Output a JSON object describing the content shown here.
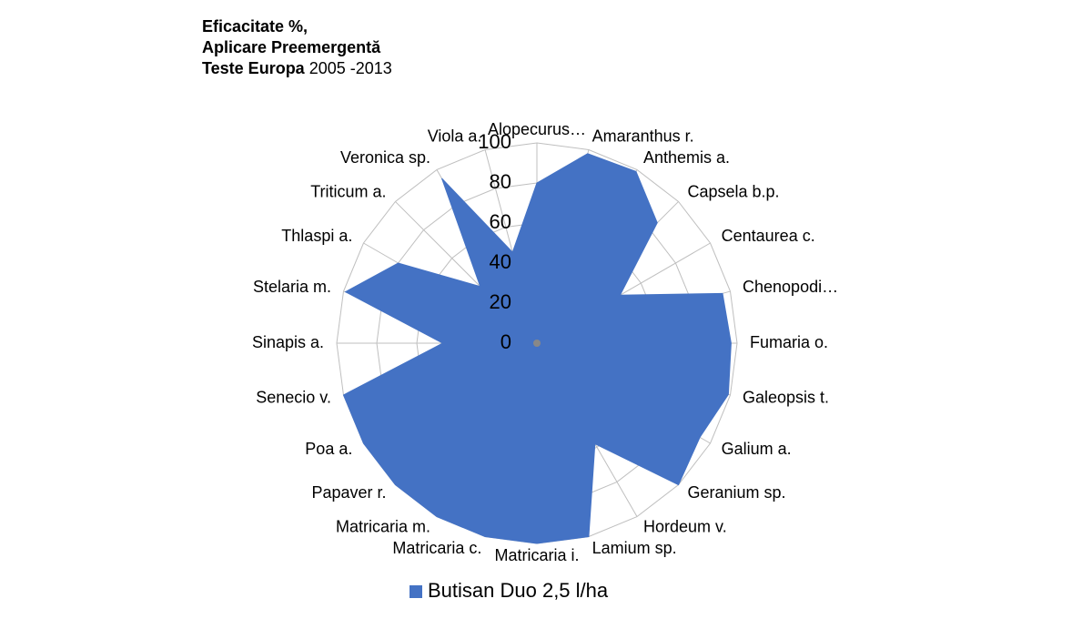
{
  "chart_data": {
    "type": "radar",
    "title": [
      "Eficacitate %,",
      "Aplicare Preemergentă",
      "Teste Europa"
    ],
    "subtitle": "2005 -2013",
    "categories": [
      "Alopecurus…",
      "Amaranthus r.",
      "Anthemis a.",
      "Capsela b.p.",
      "Centaurea c.",
      "Chenopodi…",
      "Fumaria o.",
      "Galeopsis t.",
      "Galium a.",
      "Geranium sp.",
      "Hordeum v.",
      "Lamium sp.",
      "Matricaria i.",
      "Matricaria c.",
      "Matricaria m.",
      "Papaver r.",
      "Poa a.",
      "Senecio v.",
      "Sinapis a.",
      "Stelaria m.",
      "Thlaspi a.",
      "Triticum a.",
      "Veronica sp.",
      "Viola a."
    ],
    "series": [
      {
        "name": "Butisan Duo 2,5 l/ha",
        "color": "#4472c4",
        "values": [
          80,
          98,
          99,
          85,
          48,
          96,
          97,
          99,
          94,
          100,
          58,
          100,
          100,
          100,
          100,
          100,
          100,
          100,
          47,
          99,
          80,
          40,
          95,
          47
        ]
      }
    ],
    "ylim": [
      0,
      100
    ],
    "yticks": [
      0,
      20,
      40,
      60,
      80,
      100
    ],
    "grid": true,
    "legend": "bottom"
  }
}
